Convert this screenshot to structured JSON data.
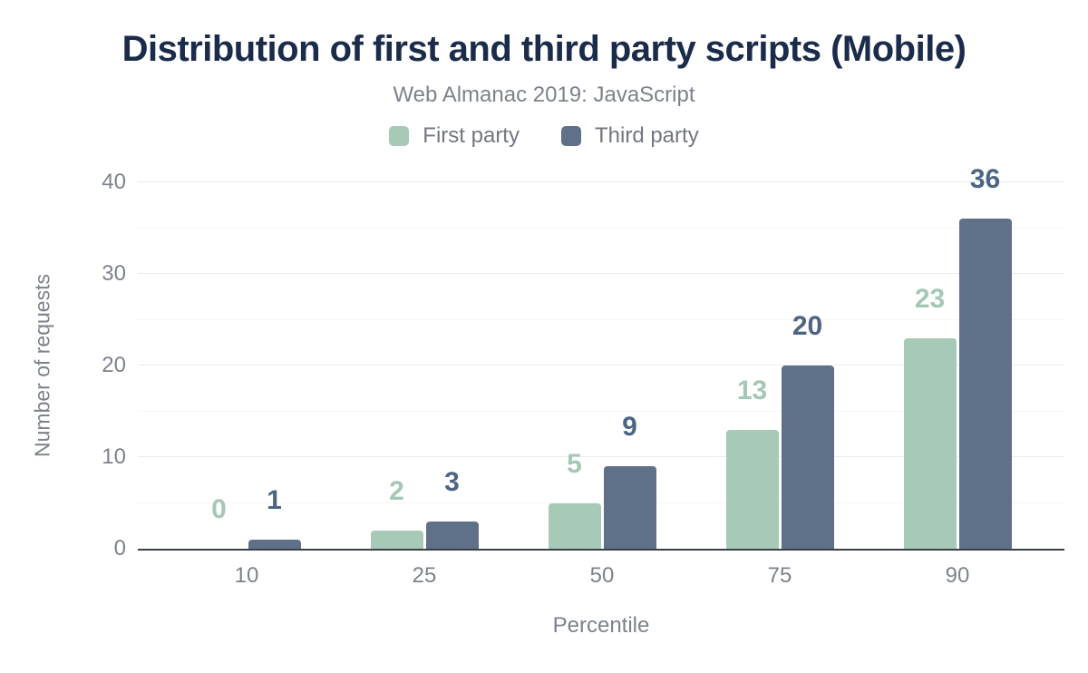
{
  "title": "Distribution of first and third party scripts (Mobile)",
  "subtitle": "Web Almanac 2019: JavaScript",
  "legend": [
    {
      "label": "First party",
      "color": "#a6c9b8"
    },
    {
      "label": "Third party",
      "color": "#5f7089"
    }
  ],
  "colors": {
    "title": "#1b2b4a",
    "muted_text": "#7d828b",
    "axis_line": "#3c4149",
    "gridline_major": "#ebebee",
    "gridline_minor": "#f5f5f7"
  },
  "chart_data": {
    "type": "bar",
    "title": "Distribution of first and third party scripts (Mobile)",
    "subtitle": "Web Almanac 2019: JavaScript",
    "categories": [
      "10",
      "25",
      "50",
      "75",
      "90"
    ],
    "series": [
      {
        "name": "First party",
        "color": "#a6c9b8",
        "label_color": "#a4c8b5",
        "values": [
          0,
          2,
          5,
          13,
          23
        ]
      },
      {
        "name": "Third party",
        "color": "#5f7089",
        "label_color": "#4d6483",
        "values": [
          1,
          3,
          9,
          20,
          36
        ]
      }
    ],
    "xlabel": "Percentile",
    "ylabel": "Number of requests",
    "ylim": [
      0,
      40
    ],
    "yticks": [
      0,
      10,
      20,
      30,
      40
    ],
    "minor_yticks": [
      5,
      15,
      25,
      35
    ],
    "grid": "horizontal-major-and-faint-minor",
    "legend_position": "top",
    "data_labels": true
  }
}
